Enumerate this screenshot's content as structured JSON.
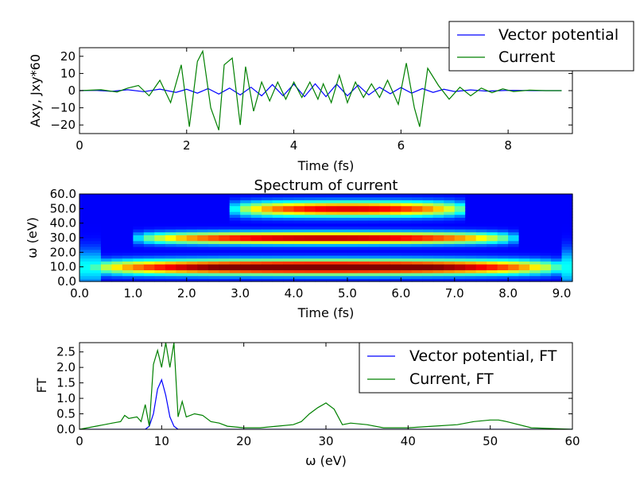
{
  "chart_data": [
    {
      "type": "line",
      "xlabel": "Time (fs)",
      "ylabel": "Axy, Jxy*60",
      "xlim": [
        0,
        9.2
      ],
      "ylim": [
        -25,
        25
      ],
      "xticks": [
        "0",
        "2",
        "4",
        "6",
        "8"
      ],
      "yticks": [
        "20",
        "10",
        "0",
        "−10",
        "−20"
      ],
      "legend": {
        "placement": "top-right, above axes",
        "entries": [
          "Vector potential",
          "Current"
        ]
      },
      "series": [
        {
          "name": "Vector potential",
          "color": "#0000ff",
          "x": [
            0,
            0.3,
            0.6,
            0.9,
            1.2,
            1.5,
            1.8,
            2.0,
            2.2,
            2.4,
            2.6,
            2.8,
            3.0,
            3.2,
            3.4,
            3.6,
            3.8,
            4.0,
            4.2,
            4.4,
            4.6,
            4.8,
            5.0,
            5.2,
            5.4,
            5.6,
            5.8,
            6.0,
            6.2,
            6.4,
            6.6,
            6.8,
            7.0,
            7.3,
            7.6,
            8.0,
            8.5,
            9.0
          ],
          "y": [
            0,
            0.2,
            -0.4,
            0.5,
            -0.6,
            0.9,
            -1.0,
            0.8,
            -1.5,
            1.2,
            -2.0,
            1.5,
            -2.5,
            2.0,
            -3.0,
            3.5,
            -3.0,
            3.8,
            -3.5,
            4.0,
            -3.5,
            3.8,
            -3.0,
            3.2,
            -2.5,
            2.0,
            -1.8,
            1.8,
            -1.5,
            1.2,
            -1.0,
            0.8,
            -0.5,
            0.4,
            -0.3,
            0.2,
            0,
            0
          ]
        },
        {
          "name": "Current",
          "color": "#008000",
          "x": [
            0,
            0.4,
            0.7,
            0.9,
            1.1,
            1.3,
            1.5,
            1.7,
            1.9,
            2.05,
            2.2,
            2.3,
            2.45,
            2.6,
            2.7,
            2.85,
            3.0,
            3.1,
            3.25,
            3.4,
            3.55,
            3.7,
            3.85,
            4.0,
            4.15,
            4.3,
            4.45,
            4.55,
            4.7,
            4.85,
            5.0,
            5.15,
            5.3,
            5.45,
            5.6,
            5.75,
            5.95,
            6.1,
            6.25,
            6.35,
            6.5,
            6.7,
            6.9,
            7.1,
            7.3,
            7.5,
            7.7,
            7.9,
            8.1,
            8.4,
            8.7,
            9.0
          ],
          "y": [
            0,
            0.5,
            -0.8,
            1.5,
            3.0,
            -3.0,
            6.0,
            -7.0,
            15.0,
            -21.0,
            17.0,
            23.0,
            -10.0,
            -23.0,
            15.0,
            19.0,
            -20.0,
            14.0,
            -12.0,
            5.0,
            -6.0,
            5.0,
            -5.0,
            5.0,
            -4.0,
            5.0,
            -5.0,
            4.0,
            -7.0,
            9.0,
            -7.0,
            5.0,
            -4.0,
            4.0,
            -4.0,
            6.0,
            -8.0,
            16.0,
            -10.0,
            -21.0,
            13.0,
            3.0,
            -5.0,
            2.0,
            -3.0,
            1.5,
            -1.2,
            1.0,
            -0.5,
            0.3,
            0,
            0
          ]
        }
      ]
    },
    {
      "type": "heatmap",
      "title": "Spectrum of current",
      "xlabel": "Time (fs)",
      "ylabel": "ω (eV)",
      "xlim": [
        0,
        9.2
      ],
      "ylim": [
        0,
        60
      ],
      "xticks": [
        "0.0",
        "1.0",
        "2.0",
        "3.0",
        "4.0",
        "5.0",
        "6.0",
        "7.0",
        "8.0",
        "9.0"
      ],
      "yticks": [
        "60.0",
        "50.0",
        "40.0",
        "30.0",
        "20.0",
        "10.0",
        "0.0"
      ],
      "colormap": "jet",
      "bands": [
        {
          "center_ev": 10,
          "width_ev": 5,
          "t_start": 0.1,
          "t_end": 9.1,
          "peak": 1.0
        },
        {
          "center_ev": 30,
          "width_ev": 4,
          "t_start": 1.0,
          "t_end": 8.2,
          "peak": 0.85
        },
        {
          "center_ev": 50,
          "width_ev": 5,
          "t_start": 2.8,
          "t_end": 7.3,
          "peak": 0.8
        }
      ]
    },
    {
      "type": "line",
      "xlabel": "ω (eV)",
      "ylabel": "FT",
      "xlim": [
        0,
        60
      ],
      "ylim": [
        0,
        2.8
      ],
      "xticks": [
        "0",
        "10",
        "20",
        "30",
        "40",
        "50",
        "60"
      ],
      "yticks": [
        "2.5",
        "2.0",
        "1.5",
        "1.0",
        "0.5",
        "0.0"
      ],
      "legend": {
        "placement": "top-right",
        "entries": [
          "Vector potential, FT",
          "Current, FT"
        ]
      },
      "series": [
        {
          "name": "Vector potential, FT",
          "color": "#0000ff",
          "x": [
            0,
            8,
            8.5,
            9,
            9.5,
            10,
            10.5,
            11,
            11.5,
            12,
            60
          ],
          "y": [
            0,
            0,
            0.1,
            0.5,
            1.3,
            1.6,
            1.1,
            0.4,
            0.1,
            0,
            0
          ]
        },
        {
          "name": "Current, FT",
          "color": "#008000",
          "x": [
            0,
            1,
            2,
            3,
            4,
            5,
            5.5,
            6,
            7,
            7.5,
            8,
            8.5,
            9,
            9.5,
            10,
            10.5,
            11,
            11.5,
            12,
            12.5,
            13,
            14,
            15,
            16,
            17,
            18,
            20,
            22,
            24,
            26,
            27,
            28,
            29,
            30,
            31,
            32,
            33,
            35,
            37,
            40,
            43,
            46,
            48,
            50,
            51,
            52,
            55,
            58,
            60
          ],
          "y": [
            0,
            0.05,
            0.1,
            0.15,
            0.2,
            0.25,
            0.45,
            0.35,
            0.4,
            0.25,
            0.8,
            0.1,
            2.1,
            2.55,
            2.0,
            2.8,
            2.0,
            2.8,
            0.4,
            0.9,
            0.4,
            0.5,
            0.45,
            0.25,
            0.2,
            0.1,
            0.05,
            0.05,
            0.1,
            0.15,
            0.25,
            0.5,
            0.7,
            0.85,
            0.65,
            0.15,
            0.2,
            0.15,
            0.05,
            0.05,
            0.1,
            0.15,
            0.25,
            0.3,
            0.3,
            0.25,
            0.05,
            0.02,
            0
          ]
        }
      ]
    }
  ]
}
